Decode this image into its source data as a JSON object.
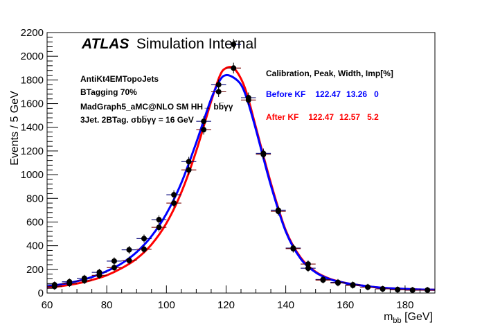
{
  "chart_data": {
    "type": "line",
    "title": "",
    "atlas_label": "ATLAS",
    "atlas_sublabel": "Simulation Internal",
    "xlabel": "m_bb [GeV]",
    "ylabel": "Events / 5 GeV",
    "xlim": [
      60,
      190
    ],
    "ylim": [
      0,
      2200
    ],
    "xticks": [
      60,
      80,
      100,
      120,
      140,
      160,
      180
    ],
    "yticks": [
      0,
      200,
      400,
      600,
      800,
      1000,
      1200,
      1400,
      1600,
      1800,
      2000,
      2200
    ],
    "info_lines": [
      "AntiKt4EMTopoJets",
      "BTagging 70%",
      "MadGraph5_aMC@NLO SM HH→ bb̅γγ",
      "3Jet. 2BTag. σbb̅γγ = 16 GeV"
    ],
    "legend_header": "Calibration, Peak,  Width,  Imp[%]",
    "legend_entries": [
      {
        "name": "Before KF",
        "peak": "122.47",
        "width": "13.26",
        "imp": "0",
        "color": "#0000ff"
      },
      {
        "name": "After KF",
        "peak": "122.47",
        "width": "12.57",
        "imp": "5.2",
        "color": "#ff0000"
      }
    ],
    "series": [
      {
        "name": "Before KF",
        "kind": "points",
        "color": "#000000",
        "x": [
          62.5,
          67.5,
          72.5,
          77.5,
          82.5,
          87.5,
          92.5,
          97.5,
          102.5,
          107.5,
          112.5,
          117.5,
          122.5,
          127.5,
          132.5,
          137.5,
          142.5,
          147.5,
          152.5,
          157.5,
          162.5,
          167.5,
          172.5,
          177.5,
          182.5,
          187.5
        ],
        "y": [
          70,
          95,
          125,
          175,
          270,
          365,
          460,
          620,
          830,
          1110,
          1450,
          1760,
          2100,
          1650,
          1180,
          700,
          380,
          210,
          115,
          90,
          70,
          50,
          35,
          30,
          25,
          25
        ]
      },
      {
        "name": "After KF",
        "kind": "points",
        "color": "#000000",
        "x": [
          62.5,
          67.5,
          72.5,
          77.5,
          82.5,
          87.5,
          92.5,
          97.5,
          102.5,
          107.5,
          112.5,
          117.5,
          122.5,
          127.5,
          132.5,
          137.5,
          142.5,
          147.5,
          152.5,
          157.5,
          162.5,
          167.5,
          172.5,
          177.5,
          182.5,
          187.5
        ],
        "y": [
          55,
          80,
          105,
          150,
          215,
          275,
          370,
          555,
          760,
          1040,
          1380,
          1700,
          1900,
          1630,
          1170,
          690,
          375,
          245,
          110,
          85,
          65,
          50,
          35,
          28,
          25,
          25
        ]
      },
      {
        "name": "Before KF fit",
        "kind": "curve",
        "color": "#0000ff",
        "x": [
          60,
          65,
          70,
          75,
          80,
          85,
          90,
          95,
          100,
          105,
          110,
          115,
          118,
          120,
          122.5,
          125,
          127,
          130,
          135,
          140,
          145,
          150,
          155,
          160,
          165,
          170,
          175,
          180,
          185,
          190
        ],
        "y": [
          55,
          75,
          100,
          135,
          185,
          250,
          345,
          480,
          670,
          930,
          1270,
          1640,
          1800,
          1840,
          1820,
          1760,
          1640,
          1380,
          910,
          520,
          290,
          175,
          115,
          85,
          65,
          50,
          40,
          35,
          30,
          28
        ]
      },
      {
        "name": "After KF fit",
        "kind": "curve",
        "color": "#ff0000",
        "x": [
          60,
          65,
          70,
          75,
          80,
          85,
          90,
          95,
          100,
          105,
          110,
          115,
          118,
          120,
          122.5,
          125,
          127,
          130,
          135,
          140,
          145,
          150,
          155,
          160,
          165,
          170,
          175,
          180,
          185,
          190
        ],
        "y": [
          45,
          60,
          80,
          110,
          150,
          210,
          290,
          410,
          590,
          850,
          1200,
          1620,
          1840,
          1900,
          1900,
          1810,
          1680,
          1400,
          930,
          530,
          300,
          180,
          118,
          86,
          65,
          50,
          40,
          35,
          30,
          28
        ]
      }
    ]
  }
}
